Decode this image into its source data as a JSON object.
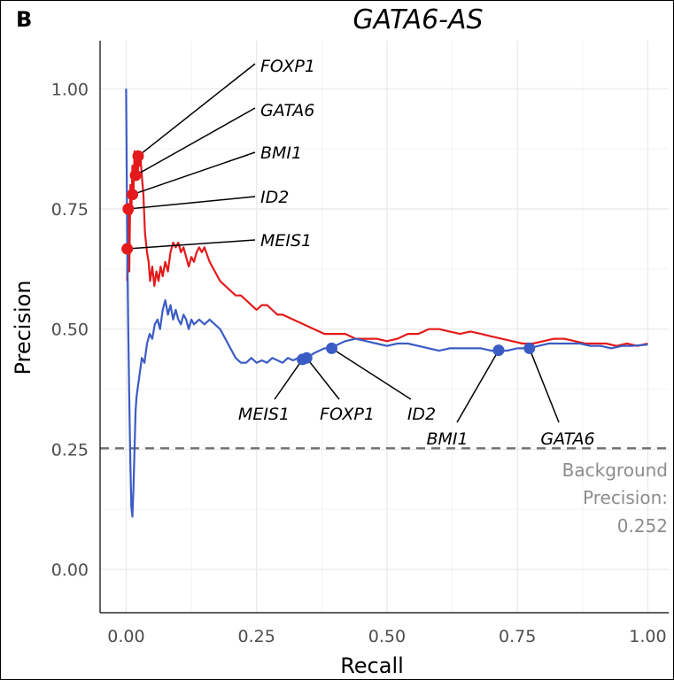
{
  "panel_label": "B",
  "chart_data": {
    "type": "line",
    "title": "GATA6-AS",
    "xlabel": "Recall",
    "ylabel": "Precision",
    "xlim": [
      -0.05,
      1.04
    ],
    "ylim": [
      -0.09,
      1.1
    ],
    "x_ticks": [
      "0.00",
      "0.25",
      "0.50",
      "0.75",
      "1.00"
    ],
    "y_ticks": [
      "0.00",
      "0.25",
      "0.50",
      "0.75",
      "1.00"
    ],
    "grid": true,
    "series": [
      {
        "color": "#e41a1c",
        "points": [
          [
            0.002,
            0.6
          ],
          [
            0.004,
            0.75
          ],
          [
            0.006,
            0.62
          ],
          [
            0.008,
            0.8
          ],
          [
            0.01,
            0.74
          ],
          [
            0.012,
            0.84
          ],
          [
            0.014,
            0.78
          ],
          [
            0.016,
            0.87
          ],
          [
            0.018,
            0.81
          ],
          [
            0.02,
            0.86
          ],
          [
            0.022,
            0.82
          ],
          [
            0.024,
            0.86
          ],
          [
            0.026,
            0.84
          ],
          [
            0.028,
            0.85
          ],
          [
            0.03,
            0.82
          ],
          [
            0.033,
            0.78
          ],
          [
            0.036,
            0.7
          ],
          [
            0.04,
            0.66
          ],
          [
            0.043,
            0.64
          ],
          [
            0.046,
            0.6
          ],
          [
            0.05,
            0.63
          ],
          [
            0.054,
            0.59
          ],
          [
            0.058,
            0.62
          ],
          [
            0.062,
            0.6
          ],
          [
            0.066,
            0.63
          ],
          [
            0.07,
            0.61
          ],
          [
            0.075,
            0.64
          ],
          [
            0.08,
            0.62
          ],
          [
            0.085,
            0.66
          ],
          [
            0.09,
            0.68
          ],
          [
            0.095,
            0.67
          ],
          [
            0.1,
            0.68
          ],
          [
            0.105,
            0.66
          ],
          [
            0.11,
            0.67
          ],
          [
            0.115,
            0.65
          ],
          [
            0.12,
            0.63
          ],
          [
            0.125,
            0.65
          ],
          [
            0.13,
            0.64
          ],
          [
            0.135,
            0.66
          ],
          [
            0.14,
            0.67
          ],
          [
            0.145,
            0.66
          ],
          [
            0.15,
            0.67
          ],
          [
            0.16,
            0.64
          ],
          [
            0.17,
            0.62
          ],
          [
            0.18,
            0.6
          ],
          [
            0.19,
            0.59
          ],
          [
            0.2,
            0.58
          ],
          [
            0.21,
            0.57
          ],
          [
            0.22,
            0.57
          ],
          [
            0.23,
            0.56
          ],
          [
            0.24,
            0.55
          ],
          [
            0.25,
            0.54
          ],
          [
            0.26,
            0.55
          ],
          [
            0.27,
            0.55
          ],
          [
            0.28,
            0.54
          ],
          [
            0.29,
            0.53
          ],
          [
            0.3,
            0.53
          ],
          [
            0.32,
            0.52
          ],
          [
            0.34,
            0.51
          ],
          [
            0.36,
            0.5
          ],
          [
            0.38,
            0.49
          ],
          [
            0.4,
            0.49
          ],
          [
            0.42,
            0.49
          ],
          [
            0.44,
            0.48
          ],
          [
            0.46,
            0.48
          ],
          [
            0.48,
            0.48
          ],
          [
            0.5,
            0.475
          ],
          [
            0.52,
            0.48
          ],
          [
            0.54,
            0.49
          ],
          [
            0.56,
            0.49
          ],
          [
            0.58,
            0.5
          ],
          [
            0.6,
            0.5
          ],
          [
            0.62,
            0.495
          ],
          [
            0.64,
            0.49
          ],
          [
            0.66,
            0.495
          ],
          [
            0.68,
            0.49
          ],
          [
            0.7,
            0.485
          ],
          [
            0.72,
            0.48
          ],
          [
            0.74,
            0.475
          ],
          [
            0.76,
            0.47
          ],
          [
            0.78,
            0.47
          ],
          [
            0.8,
            0.475
          ],
          [
            0.82,
            0.48
          ],
          [
            0.84,
            0.48
          ],
          [
            0.86,
            0.475
          ],
          [
            0.88,
            0.47
          ],
          [
            0.9,
            0.47
          ],
          [
            0.92,
            0.47
          ],
          [
            0.94,
            0.465
          ],
          [
            0.96,
            0.47
          ],
          [
            0.98,
            0.465
          ],
          [
            1.0,
            0.47
          ]
        ]
      },
      {
        "color": "#3b5cc4",
        "points": [
          [
            0.0,
            1.0
          ],
          [
            0.002,
            0.7
          ],
          [
            0.004,
            0.5
          ],
          [
            0.006,
            0.35
          ],
          [
            0.008,
            0.22
          ],
          [
            0.01,
            0.13
          ],
          [
            0.012,
            0.11
          ],
          [
            0.014,
            0.17
          ],
          [
            0.016,
            0.25
          ],
          [
            0.018,
            0.33
          ],
          [
            0.02,
            0.36
          ],
          [
            0.025,
            0.4
          ],
          [
            0.03,
            0.44
          ],
          [
            0.035,
            0.43
          ],
          [
            0.04,
            0.47
          ],
          [
            0.045,
            0.49
          ],
          [
            0.05,
            0.48
          ],
          [
            0.055,
            0.51
          ],
          [
            0.06,
            0.52
          ],
          [
            0.065,
            0.5
          ],
          [
            0.07,
            0.54
          ],
          [
            0.075,
            0.56
          ],
          [
            0.08,
            0.53
          ],
          [
            0.085,
            0.55
          ],
          [
            0.09,
            0.52
          ],
          [
            0.095,
            0.54
          ],
          [
            0.1,
            0.52
          ],
          [
            0.105,
            0.51
          ],
          [
            0.11,
            0.53
          ],
          [
            0.115,
            0.52
          ],
          [
            0.12,
            0.5
          ],
          [
            0.125,
            0.52
          ],
          [
            0.13,
            0.51
          ],
          [
            0.14,
            0.52
          ],
          [
            0.15,
            0.51
          ],
          [
            0.16,
            0.52
          ],
          [
            0.17,
            0.51
          ],
          [
            0.18,
            0.5
          ],
          [
            0.19,
            0.48
          ],
          [
            0.2,
            0.46
          ],
          [
            0.21,
            0.44
          ],
          [
            0.22,
            0.43
          ],
          [
            0.23,
            0.43
          ],
          [
            0.24,
            0.44
          ],
          [
            0.25,
            0.43
          ],
          [
            0.26,
            0.435
          ],
          [
            0.27,
            0.43
          ],
          [
            0.28,
            0.44
          ],
          [
            0.29,
            0.435
          ],
          [
            0.3,
            0.43
          ],
          [
            0.31,
            0.44
          ],
          [
            0.32,
            0.435
          ],
          [
            0.33,
            0.44
          ],
          [
            0.338,
            0.437
          ],
          [
            0.346,
            0.44
          ],
          [
            0.36,
            0.45
          ],
          [
            0.37,
            0.455
          ],
          [
            0.38,
            0.46
          ],
          [
            0.394,
            0.46
          ],
          [
            0.4,
            0.465
          ],
          [
            0.42,
            0.475
          ],
          [
            0.44,
            0.48
          ],
          [
            0.46,
            0.475
          ],
          [
            0.48,
            0.47
          ],
          [
            0.5,
            0.465
          ],
          [
            0.52,
            0.47
          ],
          [
            0.54,
            0.47
          ],
          [
            0.56,
            0.465
          ],
          [
            0.58,
            0.46
          ],
          [
            0.6,
            0.455
          ],
          [
            0.62,
            0.46
          ],
          [
            0.64,
            0.46
          ],
          [
            0.66,
            0.46
          ],
          [
            0.68,
            0.46
          ],
          [
            0.7,
            0.455
          ],
          [
            0.714,
            0.456
          ],
          [
            0.73,
            0.455
          ],
          [
            0.75,
            0.46
          ],
          [
            0.773,
            0.46
          ],
          [
            0.79,
            0.465
          ],
          [
            0.81,
            0.47
          ],
          [
            0.83,
            0.47
          ],
          [
            0.85,
            0.47
          ],
          [
            0.87,
            0.47
          ],
          [
            0.89,
            0.465
          ],
          [
            0.91,
            0.465
          ],
          [
            0.93,
            0.46
          ],
          [
            0.95,
            0.465
          ],
          [
            0.97,
            0.465
          ],
          [
            1.0,
            0.468
          ]
        ]
      }
    ],
    "highlight_points": [
      {
        "series": 0,
        "label": "FOXP1",
        "x": 0.023,
        "y": 0.86
      },
      {
        "series": 0,
        "label": "GATA6",
        "x": 0.018,
        "y": 0.82
      },
      {
        "series": 0,
        "label": "BMI1",
        "x": 0.012,
        "y": 0.78
      },
      {
        "series": 0,
        "label": "ID2",
        "x": 0.004,
        "y": 0.75
      },
      {
        "series": 0,
        "label": "MEIS1",
        "x": 0.002,
        "y": 0.667
      },
      {
        "series": 1,
        "label": "MEIS1",
        "x": 0.338,
        "y": 0.437
      },
      {
        "series": 1,
        "label": "FOXP1",
        "x": 0.346,
        "y": 0.44
      },
      {
        "series": 1,
        "label": "ID2",
        "x": 0.394,
        "y": 0.46
      },
      {
        "series": 1,
        "label": "BMI1",
        "x": 0.714,
        "y": 0.456
      },
      {
        "series": 1,
        "label": "GATA6",
        "x": 0.773,
        "y": 0.46
      }
    ],
    "baseline": {
      "y": 0.252,
      "color": "#707070"
    },
    "baseline_label": [
      "Background",
      "Precision:",
      "0.252"
    ]
  }
}
